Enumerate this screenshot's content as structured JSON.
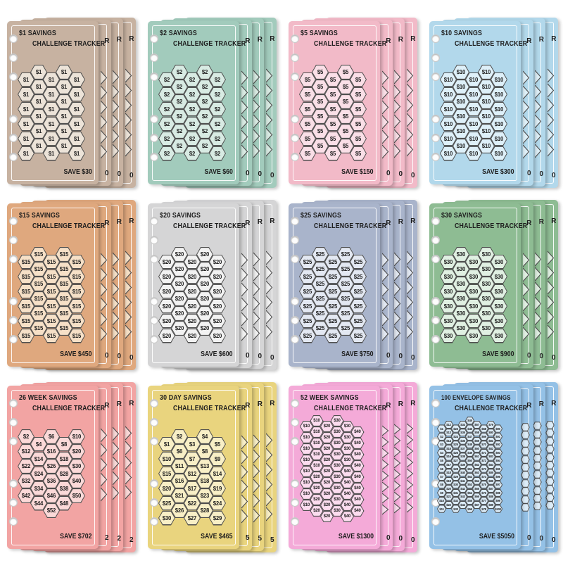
{
  "binder": {
    "holes_per_page": 6,
    "sheets_behind_each_card": 3
  },
  "colors": {
    "background": "#ffffff",
    "hex_stroke": "#4f4f4f",
    "title_text": "#1d1d1d"
  },
  "cards": [
    {
      "title_line1": "$1 SAVINGS",
      "title_line2": "CHALLENGE TRACKER",
      "footer": "SAVE $30",
      "edge_letter": "R",
      "edge_digit": "0",
      "size": "normal",
      "colors": {
        "page": "#c7b2a1",
        "hex_fill": "#ece3d8"
      },
      "columns": [
        {
          "dy": 0.5,
          "labels": [
            "$1",
            "$1",
            "$1",
            "$1",
            "$1",
            "$1"
          ]
        },
        {
          "dy": 0,
          "labels": [
            "$1",
            "$1",
            "$1",
            "$1",
            "$1",
            "$1"
          ]
        },
        {
          "dy": 0.5,
          "labels": [
            "$1",
            "$1",
            "$1",
            "$1",
            "$1",
            "$1"
          ]
        },
        {
          "dy": 0,
          "labels": [
            "$1",
            "$1",
            "$1",
            "$1",
            "$1",
            "$1"
          ]
        },
        {
          "dy": 0.5,
          "labels": [
            "$1",
            "$1",
            "$1",
            "$1",
            "$1",
            "$1"
          ]
        }
      ]
    },
    {
      "title_line1": "$2 SAVINGS",
      "title_line2": "CHALLENGE TRACKER",
      "footer": "SAVE $60",
      "edge_letter": "R",
      "edge_digit": "0",
      "size": "normal",
      "colors": {
        "page": "#a2cbbc",
        "hex_fill": "#d8ebe3"
      },
      "columns": [
        {
          "dy": 0.5,
          "labels": [
            "$2",
            "$2",
            "$2",
            "$2",
            "$2",
            "$2"
          ]
        },
        {
          "dy": 0,
          "labels": [
            "$2",
            "$2",
            "$2",
            "$2",
            "$2",
            "$2"
          ]
        },
        {
          "dy": 0.5,
          "labels": [
            "$2",
            "$2",
            "$2",
            "$2",
            "$2",
            "$2"
          ]
        },
        {
          "dy": 0,
          "labels": [
            "$2",
            "$2",
            "$2",
            "$2",
            "$2",
            "$2"
          ]
        },
        {
          "dy": 0.5,
          "labels": [
            "$2",
            "$2",
            "$2",
            "$2",
            "$2",
            "$2"
          ]
        }
      ]
    },
    {
      "title_line1": "$5 SAVINGS",
      "title_line2": "CHALLENGE TRACKER",
      "footer": "SAVE $150",
      "edge_letter": "R",
      "edge_digit": "0",
      "size": "normal",
      "colors": {
        "page": "#f2bac8",
        "hex_fill": "#fadfe7"
      },
      "columns": [
        {
          "dy": 0.5,
          "labels": [
            "$5",
            "$5",
            "$5",
            "$5",
            "$5",
            "$5"
          ]
        },
        {
          "dy": 0,
          "labels": [
            "$5",
            "$5",
            "$5",
            "$5",
            "$5",
            "$5"
          ]
        },
        {
          "dy": 0.5,
          "labels": [
            "$5",
            "$5",
            "$5",
            "$5",
            "$5",
            "$5"
          ]
        },
        {
          "dy": 0,
          "labels": [
            "$5",
            "$5",
            "$5",
            "$5",
            "$5",
            "$5"
          ]
        },
        {
          "dy": 0.5,
          "labels": [
            "$5",
            "$5",
            "$5",
            "$5",
            "$5",
            "$5"
          ]
        }
      ]
    },
    {
      "title_line1": "$10 SAVINGS",
      "title_line2": "CHALLENGE TRACKER",
      "footer": "SAVE $300",
      "edge_letter": "R",
      "edge_digit": "0",
      "size": "normal",
      "colors": {
        "page": "#b2d8eb",
        "hex_fill": "#def0f9"
      },
      "columns": [
        {
          "dy": 0.5,
          "labels": [
            "$10",
            "$10",
            "$10",
            "$10",
            "$10",
            "$10"
          ]
        },
        {
          "dy": 0,
          "labels": [
            "$10",
            "$10",
            "$10",
            "$10",
            "$10",
            "$10"
          ]
        },
        {
          "dy": 0.5,
          "labels": [
            "$10",
            "$10",
            "$10",
            "$10",
            "$10",
            "$10"
          ]
        },
        {
          "dy": 0,
          "labels": [
            "$10",
            "$10",
            "$10",
            "$10",
            "$10",
            "$10"
          ]
        },
        {
          "dy": 0.5,
          "labels": [
            "$10",
            "$10",
            "$10",
            "$10",
            "$10",
            "$10"
          ]
        }
      ]
    },
    {
      "title_line1": "$15 SAVINGS",
      "title_line2": "CHALLENGE TRACKER",
      "footer": "SAVE $450",
      "edge_letter": "R",
      "edge_digit": "0",
      "size": "normal",
      "colors": {
        "page": "#dfa87e",
        "hex_fill": "#f6e0c7"
      },
      "columns": [
        {
          "dy": 0.5,
          "labels": [
            "$15",
            "$15",
            "$15",
            "$15",
            "$15",
            "$15"
          ]
        },
        {
          "dy": 0,
          "labels": [
            "$15",
            "$15",
            "$15",
            "$15",
            "$15",
            "$15"
          ]
        },
        {
          "dy": 0.5,
          "labels": [
            "$15",
            "$15",
            "$15",
            "$15",
            "$15",
            "$15"
          ]
        },
        {
          "dy": 0,
          "labels": [
            "$15",
            "$15",
            "$15",
            "$15",
            "$15",
            "$15"
          ]
        },
        {
          "dy": 0.5,
          "labels": [
            "$15",
            "$15",
            "$15",
            "$15",
            "$15",
            "$15"
          ]
        }
      ]
    },
    {
      "title_line1": "$20 SAVINGS",
      "title_line2": "CHALLENGE TRACKER",
      "footer": "SAVE $600",
      "edge_letter": "R",
      "edge_digit": "0",
      "size": "normal",
      "colors": {
        "page": "#d5d5d6",
        "hex_fill": "#f2f2f2"
      },
      "columns": [
        {
          "dy": 0.5,
          "labels": [
            "$20",
            "$20",
            "$20",
            "$20",
            "$20",
            "$20"
          ]
        },
        {
          "dy": 0,
          "labels": [
            "$20",
            "$20",
            "$20",
            "$20",
            "$20",
            "$20"
          ]
        },
        {
          "dy": 0.5,
          "labels": [
            "$20",
            "$20",
            "$20",
            "$20",
            "$20",
            "$20"
          ]
        },
        {
          "dy": 0,
          "labels": [
            "$20",
            "$20",
            "$20",
            "$20",
            "$20",
            "$20"
          ]
        },
        {
          "dy": 0.5,
          "labels": [
            "$20",
            "$20",
            "$20",
            "$20",
            "$20",
            "$20"
          ]
        }
      ]
    },
    {
      "title_line1": "$25 SAVINGS",
      "title_line2": "CHALLENGE TRACKER",
      "footer": "SAVE $750",
      "edge_letter": "R",
      "edge_digit": "0",
      "size": "normal",
      "colors": {
        "page": "#a9b4cb",
        "hex_fill": "#e3e8f2"
      },
      "columns": [
        {
          "dy": 0.5,
          "labels": [
            "$25",
            "$25",
            "$25",
            "$25",
            "$25",
            "$25"
          ]
        },
        {
          "dy": 0,
          "labels": [
            "$25",
            "$25",
            "$25",
            "$25",
            "$25",
            "$25"
          ]
        },
        {
          "dy": 0.5,
          "labels": [
            "$25",
            "$25",
            "$25",
            "$25",
            "$25",
            "$25"
          ]
        },
        {
          "dy": 0,
          "labels": [
            "$25",
            "$25",
            "$25",
            "$25",
            "$25",
            "$25"
          ]
        },
        {
          "dy": 0.5,
          "labels": [
            "$25",
            "$25",
            "$25",
            "$25",
            "$25",
            "$25"
          ]
        }
      ]
    },
    {
      "title_line1": "$30 SAVINGS",
      "title_line2": "CHALLENGE TRACKER",
      "footer": "SAVE $900",
      "edge_letter": "R",
      "edge_digit": "0",
      "size": "normal",
      "colors": {
        "page": "#8ebc93",
        "hex_fill": "#e0f0e2"
      },
      "columns": [
        {
          "dy": 0.5,
          "labels": [
            "$30",
            "$30",
            "$30",
            "$30",
            "$30",
            "$30"
          ]
        },
        {
          "dy": 0,
          "labels": [
            "$30",
            "$30",
            "$30",
            "$30",
            "$30",
            "$30"
          ]
        },
        {
          "dy": 0.5,
          "labels": [
            "$30",
            "$30",
            "$30",
            "$30",
            "$30",
            "$30"
          ]
        },
        {
          "dy": 0,
          "labels": [
            "$30",
            "$30",
            "$30",
            "$30",
            "$30",
            "$30"
          ]
        },
        {
          "dy": 0.5,
          "labels": [
            "$30",
            "$30",
            "$30",
            "$30",
            "$30",
            "$30"
          ]
        }
      ]
    },
    {
      "title_line1": "26 WEEK SAVINGS",
      "title_line2": "CHALLENGE TRACKER",
      "footer": "SAVE $702",
      "edge_letter": "R",
      "edge_digit": "2",
      "size": "normal",
      "colors": {
        "page": "#f2a4a3",
        "hex_fill": "#fbd9d8"
      },
      "columns": [
        {
          "dy": 0,
          "labels": [
            "$2",
            "$12",
            "$22",
            "$32",
            "$42"
          ]
        },
        {
          "dy": 0.5,
          "labels": [
            "$4",
            "$14",
            "$24",
            "$34",
            "$44"
          ]
        },
        {
          "dy": 0,
          "labels": [
            "$6",
            "$16",
            "$26",
            "$36",
            "$46",
            "$52"
          ]
        },
        {
          "dy": 0.5,
          "labels": [
            "$8",
            "$18",
            "$28",
            "$38",
            "$48"
          ]
        },
        {
          "dy": 0,
          "labels": [
            "$10",
            "$20",
            "$30",
            "$40",
            "$50"
          ]
        }
      ]
    },
    {
      "title_line1": "30 DAY SAVINGS",
      "title_line2": "CHALLENGE TRACKER",
      "footer": "SAVE $465",
      "edge_letter": "R",
      "edge_digit": "5",
      "size": "normal",
      "colors": {
        "page": "#e9d47e",
        "hex_fill": "#f8efc6"
      },
      "columns": [
        {
          "dy": 0.5,
          "labels": [
            "$1",
            "$10",
            "$15",
            "$20",
            "$25",
            "$30"
          ]
        },
        {
          "dy": 0,
          "labels": [
            "$2",
            "$6",
            "$11",
            "$16",
            "$21",
            "$26"
          ]
        },
        {
          "dy": 0.5,
          "labels": [
            "$3",
            "$7",
            "$12",
            "$17",
            "$22",
            "$27"
          ]
        },
        {
          "dy": 0,
          "labels": [
            "$4",
            "$8",
            "$13",
            "$18",
            "$23",
            "$28"
          ]
        },
        {
          "dy": 0.5,
          "labels": [
            "$5",
            "$9",
            "$14",
            "$19",
            "$24",
            "$29"
          ]
        }
      ]
    },
    {
      "title_line1": "52 WEEK SAVINGS",
      "title_line2": "CHALLENGE TRACKER",
      "footer": "SAVE $1300",
      "edge_letter": "R",
      "edge_digit": "0",
      "size": "week52",
      "colors": {
        "page": "#f4aad8",
        "hex_fill": "#fcdcef"
      },
      "columns": [
        {
          "dy": 0.5,
          "labels": [
            "$10",
            "$10",
            "$10",
            "$10",
            "$10",
            "$10",
            "$10",
            "$10"
          ]
        },
        {
          "dy": 0,
          "labels": [
            "$10",
            "$10",
            "$10",
            "$10",
            "$10",
            "$20",
            "$20",
            "$20",
            "$20"
          ]
        },
        {
          "dy": 0.5,
          "labels": [
            "$20",
            "$20",
            "$20",
            "$20",
            "$20",
            "$20",
            "$20",
            "$20",
            "$20"
          ]
        },
        {
          "dy": 0,
          "labels": [
            "$30",
            "$30",
            "$30",
            "$30",
            "$30",
            "$30",
            "$30",
            "$30",
            "$30"
          ]
        },
        {
          "dy": 0.5,
          "labels": [
            "$30",
            "$30",
            "$30",
            "$30",
            "$40",
            "$40",
            "$40",
            "$40",
            "$40"
          ]
        },
        {
          "dy": 1,
          "labels": [
            "$40",
            "$40",
            "$40",
            "$40",
            "$40",
            "$40",
            "$40",
            "$40"
          ]
        }
      ]
    },
    {
      "title_line1": "100 ENVELOPE SAVINGS",
      "title_line2": "CHALLENGE TRACKER",
      "footer": "SAVE $5050",
      "edge_letter": "R",
      "edge_digit": "0",
      "size": "env100",
      "colors": {
        "page": "#94c1e6",
        "hex_fill": "#dcecf8"
      },
      "columns": [
        {
          "dy": 1,
          "labels": [
            "$1",
            "$2",
            "$3",
            "$4",
            "$5",
            "$6",
            "$7",
            "$8",
            "$9",
            "$10",
            "$11"
          ]
        },
        {
          "dy": 0.5,
          "labels": [
            "$12",
            "$13",
            "$14",
            "$15",
            "$16",
            "$17",
            "$18",
            "$19",
            "$20",
            "$21",
            "$22"
          ]
        },
        {
          "dy": 1,
          "labels": [
            "$23",
            "$24",
            "$25",
            "$26",
            "$27",
            "$28",
            "$29",
            "$30",
            "$31",
            "$32",
            "$33"
          ]
        },
        {
          "dy": 0.5,
          "labels": [
            "$34",
            "$35",
            "$36",
            "$37",
            "$38",
            "$39",
            "$40",
            "$41",
            "$42",
            "$43",
            "$44"
          ]
        },
        {
          "dy": 0,
          "labels": [
            "$45",
            "$46",
            "$47",
            "$48",
            "$49",
            "$50",
            "$51",
            "$52",
            "$53",
            "$54",
            "$55",
            "$56"
          ]
        },
        {
          "dy": 0.5,
          "labels": [
            "$57",
            "$58",
            "$59",
            "$60",
            "$61",
            "$62",
            "$63",
            "$64",
            "$65",
            "$66",
            "$67"
          ]
        },
        {
          "dy": 1,
          "labels": [
            "$68",
            "$69",
            "$70",
            "$71",
            "$72",
            "$73",
            "$74",
            "$75",
            "$76",
            "$77",
            "$78"
          ]
        },
        {
          "dy": 0.5,
          "labels": [
            "$79",
            "$80",
            "$81",
            "$82",
            "$83",
            "$84",
            "$85",
            "$86",
            "$87",
            "$88",
            "$89"
          ]
        },
        {
          "dy": 1,
          "labels": [
            "$90",
            "$91",
            "$92",
            "$93",
            "$94",
            "$95",
            "$96",
            "$97",
            "$98",
            "$99",
            "$100"
          ]
        }
      ]
    }
  ]
}
